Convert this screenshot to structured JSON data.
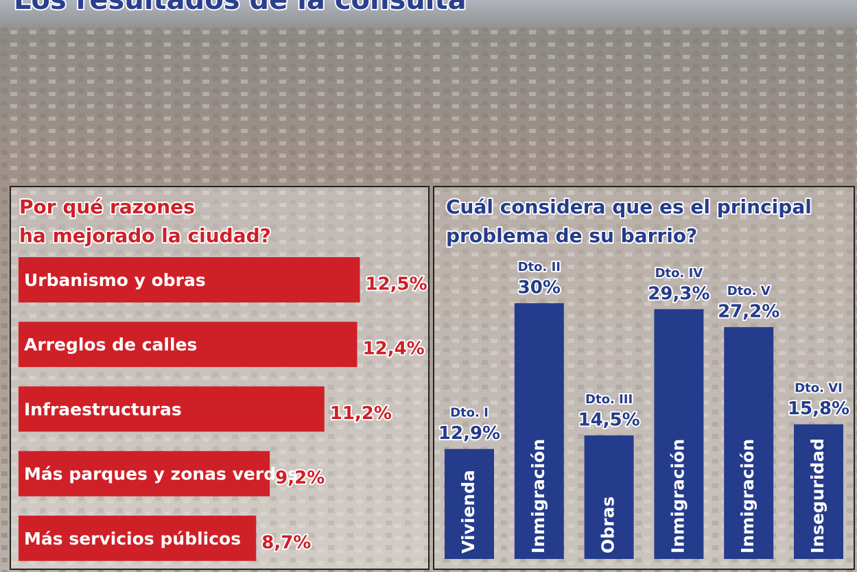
{
  "banner_title": "Los resultados de la consulta",
  "chart_data": [
    {
      "type": "hbar",
      "title": [
        "Por qué razones",
        "ha mejorado la ciudad?"
      ],
      "categories": [
        "Urbanismo y obras",
        "Arreglos de calles",
        "Infraestructuras",
        "Más parques y zonas verdes",
        "Más servicios públicos"
      ],
      "values": [
        12.5,
        12.4,
        11.2,
        9.2,
        8.7
      ],
      "value_labels": [
        "12,5%",
        "12,4%",
        "11,2%",
        "9,2%",
        "8,7%"
      ],
      "color": "#cf2028"
    },
    {
      "type": "bar",
      "title": [
        "Cuál considera que es el principal",
        "problema de su barrio?"
      ],
      "categories": [
        "Dto. I",
        "Dto. II",
        "Dto. III",
        "Dto. IV",
        "Dto. V",
        "Dto. VI"
      ],
      "bar_labels": [
        "Vivienda",
        "Inmigración",
        "Obras",
        "Inmigración",
        "Inmigración",
        "Inseguridad"
      ],
      "values": [
        12.9,
        30,
        14.5,
        29.3,
        27.2,
        15.8
      ],
      "value_labels": [
        "12,9%",
        "30%",
        "14,5%",
        "29,3%",
        "27,2%",
        "15,8%"
      ],
      "color": "#253c8c"
    }
  ]
}
